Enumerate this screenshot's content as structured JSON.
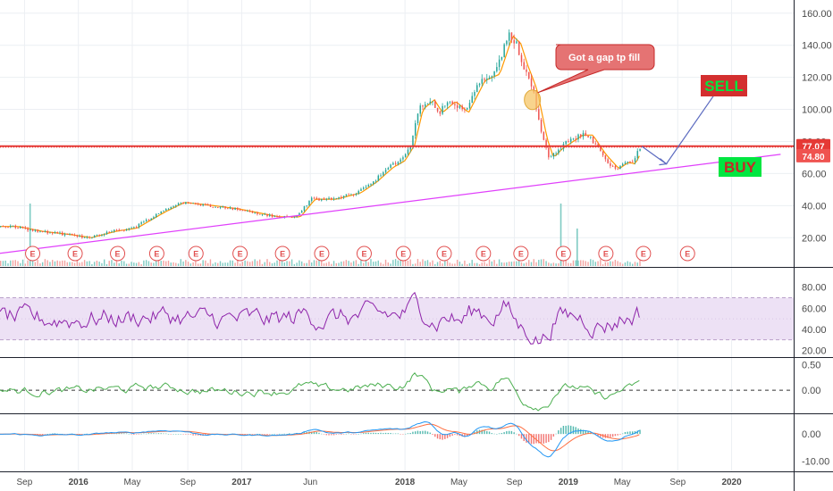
{
  "chart_data": {
    "type": "candlestick",
    "price_pane": {
      "yticks": [
        "160.00",
        "140.00",
        "120.00",
        "100.00",
        "80.00",
        "60.00",
        "40.00",
        "20.00"
      ],
      "ytick_values": [
        160,
        140,
        120,
        100,
        80,
        60,
        40,
        20
      ],
      "ylim": [
        4,
        166
      ],
      "price_path": [
        {
          "t": 2015.6,
          "v": 27
        },
        {
          "t": 2015.75,
          "v": 24
        },
        {
          "t": 2015.92,
          "v": 22
        },
        {
          "t": 2016.05,
          "v": 20
        },
        {
          "t": 2016.2,
          "v": 24
        },
        {
          "t": 2016.33,
          "v": 26
        },
        {
          "t": 2016.5,
          "v": 36
        },
        {
          "t": 2016.62,
          "v": 42
        },
        {
          "t": 2016.8,
          "v": 40
        },
        {
          "t": 2016.95,
          "v": 38
        },
        {
          "t": 2017.05,
          "v": 36
        },
        {
          "t": 2017.2,
          "v": 33
        },
        {
          "t": 2017.33,
          "v": 33
        },
        {
          "t": 2017.42,
          "v": 44
        },
        {
          "t": 2017.55,
          "v": 44
        },
        {
          "t": 2017.7,
          "v": 48
        },
        {
          "t": 2017.8,
          "v": 55
        },
        {
          "t": 2017.9,
          "v": 64
        },
        {
          "t": 2017.97,
          "v": 68
        },
        {
          "t": 2018.03,
          "v": 78
        },
        {
          "t": 2018.08,
          "v": 100
        },
        {
          "t": 2018.15,
          "v": 106
        },
        {
          "t": 2018.2,
          "v": 98
        },
        {
          "t": 2018.28,
          "v": 105
        },
        {
          "t": 2018.36,
          "v": 98
        },
        {
          "t": 2018.46,
          "v": 118
        },
        {
          "t": 2018.55,
          "v": 122
        },
        {
          "t": 2018.63,
          "v": 146
        },
        {
          "t": 2018.68,
          "v": 141
        },
        {
          "t": 2018.72,
          "v": 128
        },
        {
          "t": 2018.78,
          "v": 112
        },
        {
          "t": 2018.84,
          "v": 82
        },
        {
          "t": 2018.88,
          "v": 70
        },
        {
          "t": 2018.94,
          "v": 76
        },
        {
          "t": 2019.0,
          "v": 80
        },
        {
          "t": 2019.06,
          "v": 84
        },
        {
          "t": 2019.12,
          "v": 84
        },
        {
          "t": 2019.2,
          "v": 72
        },
        {
          "t": 2019.28,
          "v": 63
        },
        {
          "t": 2019.34,
          "v": 67
        },
        {
          "t": 2019.38,
          "v": 66
        },
        {
          "t": 2019.42,
          "v": 74
        },
        {
          "t": 2019.45,
          "v": 77
        }
      ],
      "horizontal_level": 77.07,
      "horizontal_level_label": "77.07",
      "last_price": 74.8,
      "last_price_label": "74.80",
      "trendline": {
        "from": {
          "t": 2015.5,
          "v": 10
        },
        "to": {
          "t": 2020.3,
          "v": 72
        }
      },
      "projection": [
        {
          "t": 2019.45,
          "v": 77
        },
        {
          "t": 2019.6,
          "v": 66
        },
        {
          "t": 2019.92,
          "v": 113
        }
      ],
      "gap_circle": {
        "t": 2018.78,
        "v": 106
      },
      "callout": "Got a gap tp fill",
      "sell_label": "SELL",
      "buy_label": "BUY",
      "earnings_marker": "E",
      "earnings_dates": [
        2015.72,
        2015.98,
        2016.24,
        2016.48,
        2016.72,
        2016.99,
        2017.25,
        2017.49,
        2017.75,
        2017.99,
        2018.24,
        2018.48,
        2018.71,
        2018.97,
        2019.23,
        2019.46,
        2019.73
      ],
      "volume_spikes": [
        {
          "t": 2015.7,
          "v": 1.0
        },
        {
          "t": 2018.95,
          "v": 1.0
        },
        {
          "t": 2019.05,
          "v": 0.6
        }
      ]
    },
    "rsi_pane": {
      "yticks": [
        "80.00",
        "60.00",
        "40.00",
        "20.00"
      ],
      "ytick_values": [
        80,
        60,
        40,
        20
      ],
      "ylim": [
        17,
        95
      ],
      "band": [
        30,
        70
      ],
      "color": "#8e24aa"
    },
    "osc_pane": {
      "yticks": [
        "0.50",
        "0.00"
      ],
      "ytick_values": [
        0.5,
        0.0
      ],
      "ylim": [
        -0.38,
        0.56
      ],
      "color": "#4caf50"
    },
    "macd_pane": {
      "yticks": [
        "0.00",
        "-10.00"
      ],
      "ytick_values": [
        0,
        -10
      ],
      "ylim": [
        -12.5,
        6
      ],
      "macd_color": "#2196f3",
      "signal_color": "#ff7043"
    },
    "x_axis": {
      "labels": [
        {
          "t": 2015.67,
          "label": "Sep",
          "bold": false
        },
        {
          "t": 2016.0,
          "label": "2016",
          "bold": true
        },
        {
          "t": 2016.33,
          "label": "May",
          "bold": false
        },
        {
          "t": 2016.67,
          "label": "Sep",
          "bold": false
        },
        {
          "t": 2017.0,
          "label": "2017",
          "bold": true
        },
        {
          "t": 2017.42,
          "label": "Jun",
          "bold": false
        },
        {
          "t": 2018.0,
          "label": "2018",
          "bold": true
        },
        {
          "t": 2018.33,
          "label": "May",
          "bold": false
        },
        {
          "t": 2018.67,
          "label": "Sep",
          "bold": false
        },
        {
          "t": 2019.0,
          "label": "2019",
          "bold": true
        },
        {
          "t": 2019.33,
          "label": "May",
          "bold": false
        },
        {
          "t": 2019.67,
          "label": "Sep",
          "bold": false
        },
        {
          "t": 2020.0,
          "label": "2020",
          "bold": true
        }
      ]
    },
    "colors": {
      "up": "#26a69a",
      "down": "#ef5350",
      "level": "#e53935",
      "trendline": "#e040fb",
      "projection": "#5c6bc0",
      "sell_bg": "#d32f2f",
      "sell_text": "#00e640",
      "buy_bg": "#00e640",
      "buy_text": "#c62828",
      "callout_bg": "#e57373",
      "gap_circle": "#f6c667",
      "grid": "#eceff3"
    }
  }
}
